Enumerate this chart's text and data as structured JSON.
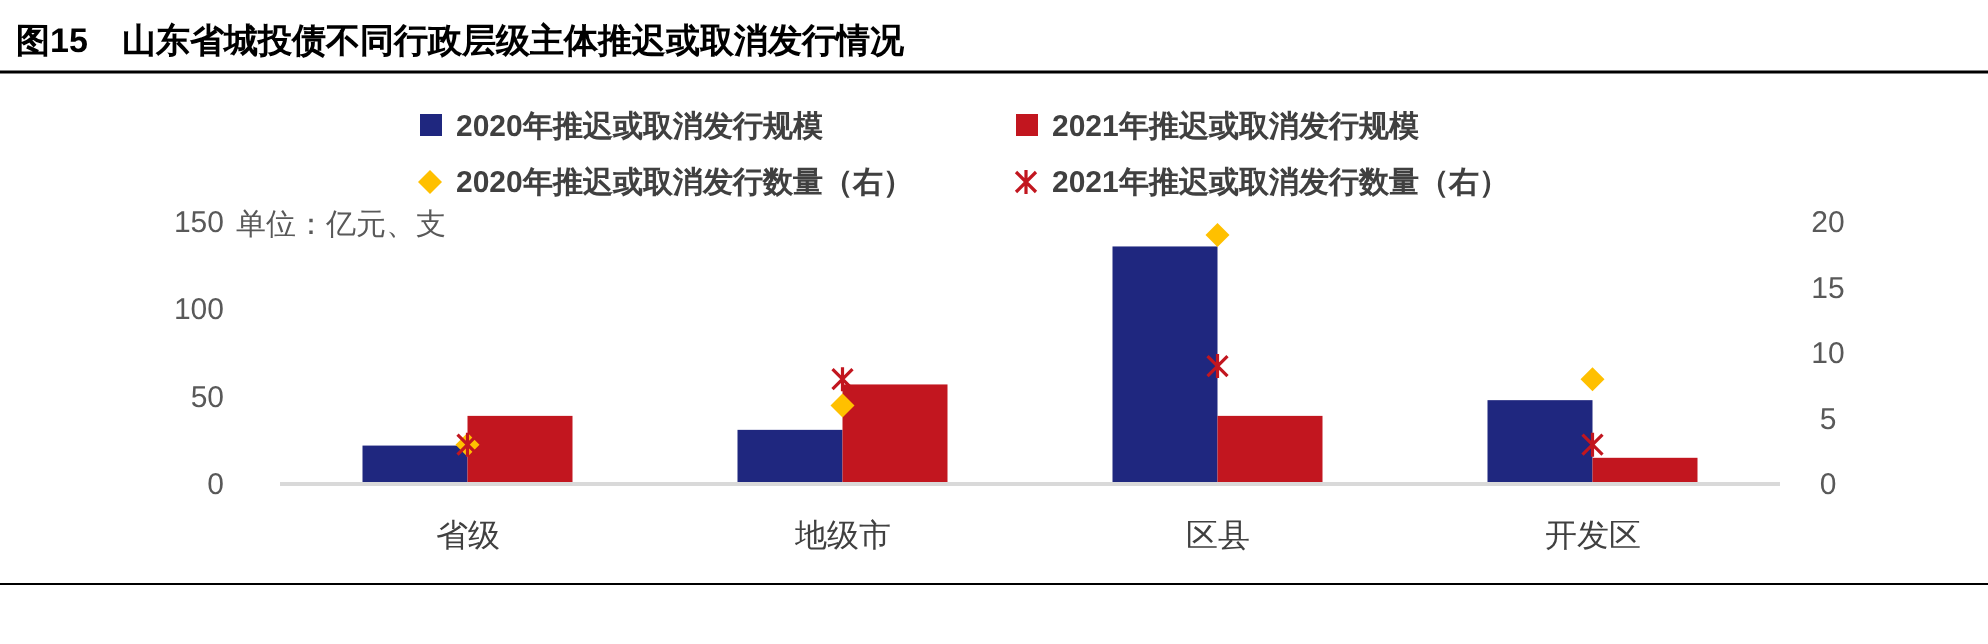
{
  "chart_data": {
    "type": "bar",
    "title": "图15　山东省城投债不同行政层级主体推迟或取消发行情况",
    "annotations": [
      "单位：亿元、支"
    ],
    "categories": [
      "省级",
      "地级市",
      "区县",
      "开发区"
    ],
    "series": [
      {
        "name": "2020年推迟或取消发行规模",
        "color": "#1f277f",
        "values": [
          22,
          31,
          136,
          48
        ]
      },
      {
        "name": "2021年推迟或取消发行规模",
        "color": "#c2161f",
        "values": [
          39,
          57,
          39,
          15
        ]
      },
      {
        "name": "2020年推迟或取消发行数量（右）",
        "type": "scatter",
        "marker": "diamond",
        "axis": "y2",
        "color": "#ffc000",
        "values": [
          3,
          6,
          19,
          8
        ]
      },
      {
        "name": "2021年推迟或取消发行数量（右）",
        "type": "scatter",
        "marker": "cross",
        "axis": "y2",
        "color": "#c2161f",
        "values": [
          3,
          8,
          9,
          3
        ]
      }
    ],
    "ylim": [
      0,
      150
    ],
    "yticks": [
      0,
      50,
      100,
      150
    ],
    "y2lim": [
      0,
      20
    ],
    "y2ticks": [
      0,
      5,
      10,
      15,
      20
    ],
    "legend": "top",
    "grid": false
  }
}
